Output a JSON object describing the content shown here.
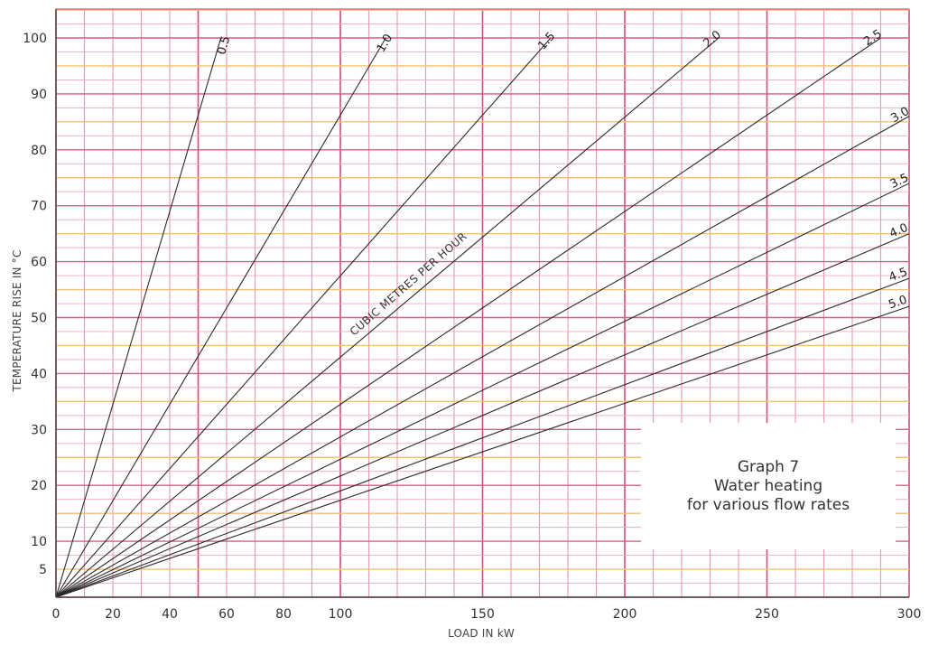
{
  "chart_data": {
    "type": "line",
    "xlabel": "LOAD IN kW",
    "ylabel": "TEMPERATURE RISE IN °C",
    "xlim": [
      0,
      300
    ],
    "ylim": [
      0,
      105
    ],
    "x_ticks": [
      {
        "value": 0,
        "label": "0"
      },
      {
        "value": 20,
        "label": "20"
      },
      {
        "value": 40,
        "label": "40"
      },
      {
        "value": 60,
        "label": "60"
      },
      {
        "value": 80,
        "label": "80"
      },
      {
        "value": 100,
        "label": "100"
      },
      {
        "value": 150,
        "label": "150"
      },
      {
        "value": 200,
        "label": "200"
      },
      {
        "value": 250,
        "label": "250"
      },
      {
        "value": 300,
        "label": "300"
      }
    ],
    "y_ticks": [
      {
        "value": 5,
        "label": "5"
      },
      {
        "value": 10,
        "label": "10"
      },
      {
        "value": 20,
        "label": "20"
      },
      {
        "value": 30,
        "label": "30"
      },
      {
        "value": 40,
        "label": "40"
      },
      {
        "value": 50,
        "label": "50"
      },
      {
        "value": 60,
        "label": "60"
      },
      {
        "value": 70,
        "label": "70"
      },
      {
        "value": 80,
        "label": "80"
      },
      {
        "value": 90,
        "label": "90"
      },
      {
        "value": 100,
        "label": "100"
      }
    ],
    "grid": true,
    "series_annotation": "CUBIC METRES PER HOUR",
    "series": [
      {
        "name": "0.5",
        "x": [
          0,
          58
        ],
        "y": [
          0,
          100
        ]
      },
      {
        "name": "1.0",
        "x": [
          0,
          116
        ],
        "y": [
          0,
          100
        ]
      },
      {
        "name": "1.5",
        "x": [
          0,
          174
        ],
        "y": [
          0,
          100
        ]
      },
      {
        "name": "2.0",
        "x": [
          0,
          233
        ],
        "y": [
          0,
          100
        ]
      },
      {
        "name": "2.5",
        "x": [
          0,
          290
        ],
        "y": [
          0,
          100
        ]
      },
      {
        "name": "3.0",
        "x": [
          0,
          300
        ],
        "y": [
          0,
          86
        ]
      },
      {
        "name": "3.5",
        "x": [
          0,
          300
        ],
        "y": [
          0,
          74
        ]
      },
      {
        "name": "4.0",
        "x": [
          0,
          300
        ],
        "y": [
          0,
          65
        ]
      },
      {
        "name": "4.5",
        "x": [
          0,
          300
        ],
        "y": [
          0,
          57
        ]
      },
      {
        "name": "5.0",
        "x": [
          0,
          300
        ],
        "y": [
          0,
          52
        ]
      }
    ],
    "annotation": {
      "lines": [
        "Graph 7",
        "Water heating",
        "for various flow rates"
      ]
    }
  }
}
